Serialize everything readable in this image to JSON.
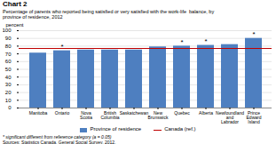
{
  "chart_data": {
    "type": "bar",
    "title": "Chart 2",
    "subtitle": "Percentage of parents who reported being satisfied or very satisfied with the work-life  balance, by\nprovince of residence, 2012",
    "ylabel": "percent",
    "categories": [
      "Manitoba",
      "Ontario",
      "Nova Scotia",
      "British Columbia",
      "Saskatchewan",
      "New Brunswick",
      "Quebec",
      "Alberta",
      "Newfoundland\nand Labrador",
      "Prince Edward\nIsland"
    ],
    "series": [
      {
        "name": "Province of residence",
        "color": "#4e7fc0",
        "values": [
          71,
          74,
          75,
          75,
          75,
          79,
          80,
          81,
          82,
          90
        ]
      }
    ],
    "reference_lines": [
      {
        "name": "Canada (ref.)",
        "value": 77,
        "color": "#c00000"
      }
    ],
    "annotations": [
      {
        "category": "Ontario",
        "text": "*"
      },
      {
        "category": "Quebec",
        "text": "*"
      },
      {
        "category": "Alberta",
        "text": "*"
      },
      {
        "category": "Prince Edward\nIsland",
        "text": "*"
      }
    ],
    "ylim": [
      0,
      100
    ],
    "yticks": [
      0,
      10,
      20,
      30,
      40,
      50,
      60,
      70,
      80,
      90,
      100
    ],
    "grid": true,
    "legend": "bottom",
    "footnote": "* significant different from reference category (a = 0.05)",
    "source": "Sources: Statistics Canada, General Social Survey, 2012."
  }
}
